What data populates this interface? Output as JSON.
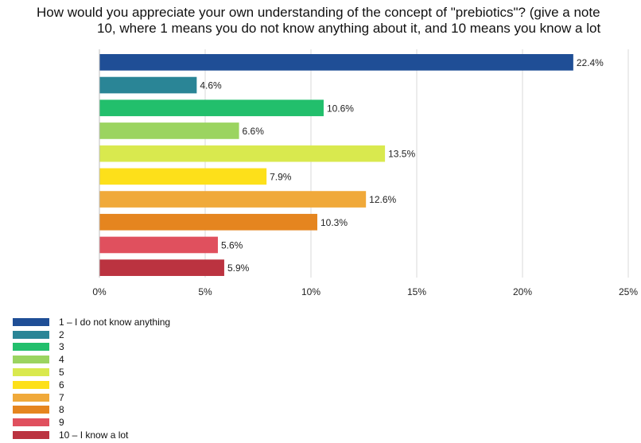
{
  "chart_data": {
    "type": "bar",
    "orientation": "horizontal",
    "title": "How would you appreciate your own understanding of the concept of \"prebiotics\"? (give a note 10, where 1 means you do not know anything about it, and 10 means you know a lot",
    "title_lines": [
      "How would you appreciate your own understanding of the concept of \"prebiotics\"? (give a note",
      "10, where 1 means you do not know anything about it, and 10 means you know a lot"
    ],
    "categories": [
      "1 – I do not know anything",
      "2",
      "3",
      "4",
      "5",
      "6",
      "7",
      "8",
      "9",
      "10 – I know a lot"
    ],
    "values": [
      22.4,
      4.6,
      10.6,
      6.6,
      13.5,
      7.9,
      12.6,
      10.3,
      5.6,
      5.9
    ],
    "value_labels": [
      "22.4%",
      "4.6%",
      "10.6%",
      "6.6%",
      "13.5%",
      "7.9%",
      "12.6%",
      "10.3%",
      "5.6%",
      "5.9%"
    ],
    "colors": [
      "#1f4e96",
      "#2a8596",
      "#22bf6c",
      "#9bd460",
      "#d9e94e",
      "#fde01a",
      "#f0a93a",
      "#e5851f",
      "#e0505e",
      "#bb3340"
    ],
    "xlim": [
      0,
      25
    ],
    "x_ticks": [
      0,
      5,
      10,
      15,
      20,
      25
    ],
    "x_tick_labels": [
      "0%",
      "5%",
      "10%",
      "15%",
      "20%",
      "25%"
    ],
    "grid": "vertical",
    "legend_position": "bottom-left"
  }
}
